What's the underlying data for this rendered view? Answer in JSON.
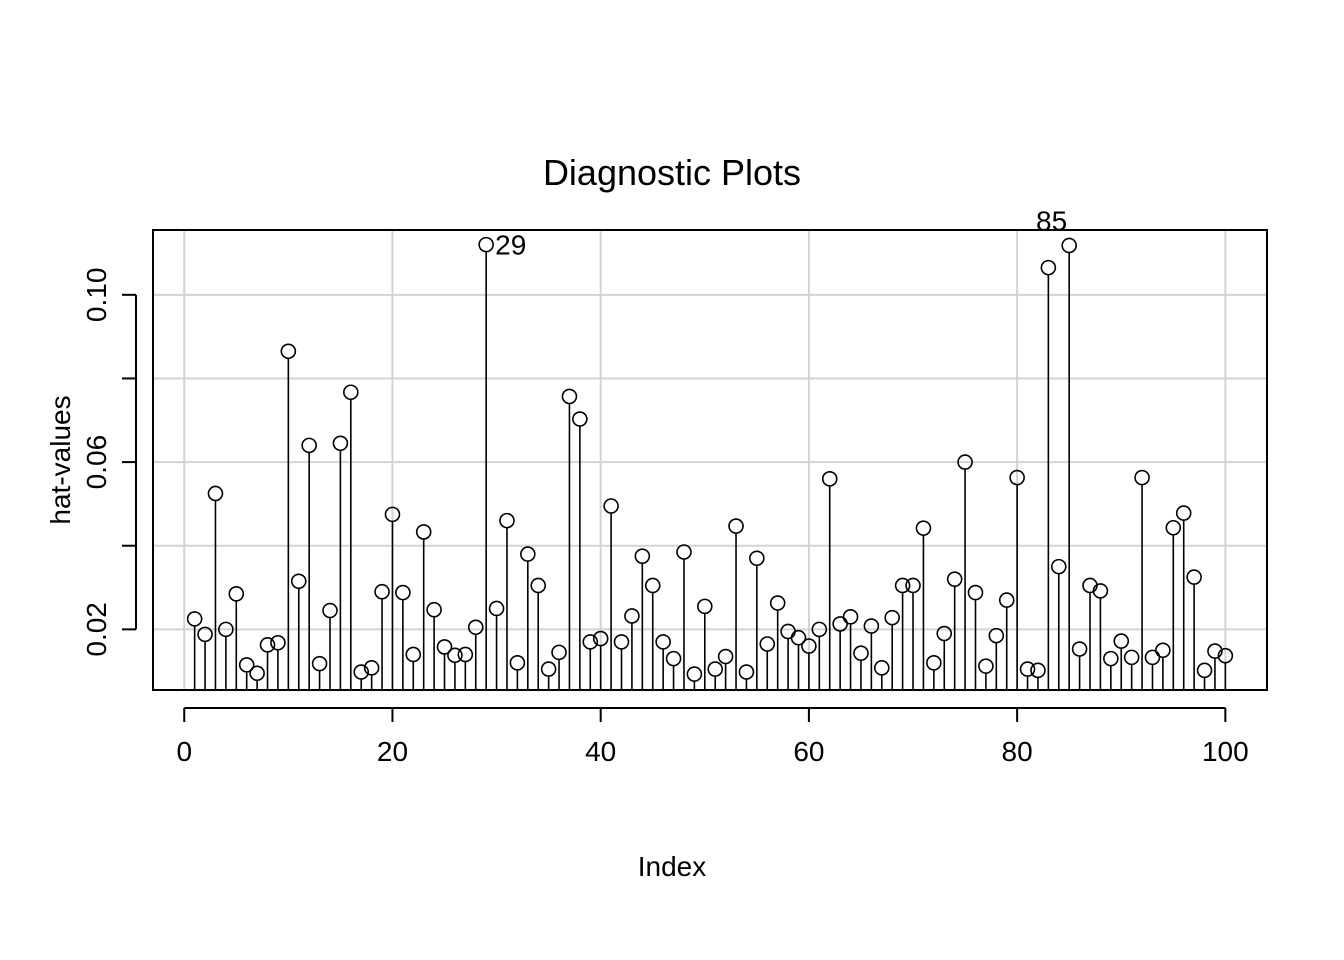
{
  "chart_data": {
    "type": "scatter",
    "style": "hat-values stem plot (vertical lines from baseline with open circles)",
    "title": "Diagnostic Plots",
    "xlabel": "Index",
    "ylabel": "hat-values",
    "xlim": [
      -3,
      104
    ],
    "ylim": [
      0.0055,
      0.1155
    ],
    "baseline": 0.0055,
    "x_ticks": [
      0,
      20,
      40,
      60,
      80,
      100
    ],
    "x_tick_labels": [
      "0",
      "20",
      "40",
      "60",
      "80",
      "100"
    ],
    "y_ticks": [
      0.02,
      0.04,
      0.06,
      0.08,
      0.1
    ],
    "y_tick_labels": [
      "0.02",
      "",
      "0.06",
      "",
      "0.10"
    ],
    "grid": true,
    "grid_color": "#d3d3d3",
    "point_symbol": "open-circle",
    "x": [
      1,
      2,
      3,
      4,
      5,
      6,
      7,
      8,
      9,
      10,
      11,
      12,
      13,
      14,
      15,
      16,
      17,
      18,
      19,
      20,
      21,
      22,
      23,
      24,
      25,
      26,
      27,
      28,
      29,
      30,
      31,
      32,
      33,
      34,
      35,
      36,
      37,
      38,
      39,
      40,
      41,
      42,
      43,
      44,
      45,
      46,
      47,
      48,
      49,
      50,
      51,
      52,
      53,
      54,
      55,
      56,
      57,
      58,
      59,
      60,
      61,
      62,
      63,
      64,
      65,
      66,
      67,
      68,
      69,
      70,
      71,
      72,
      73,
      74,
      75,
      76,
      77,
      78,
      79,
      80,
      81,
      82,
      83,
      84,
      85,
      86,
      87,
      88,
      89,
      90,
      91,
      92,
      93,
      94,
      95,
      96,
      97,
      98,
      99,
      100
    ],
    "y": [
      0.0225,
      0.0188,
      0.0525,
      0.02,
      0.0285,
      0.0115,
      0.0095,
      0.0163,
      0.0168,
      0.0865,
      0.0315,
      0.064,
      0.0118,
      0.0245,
      0.0645,
      0.0767,
      0.0098,
      0.0108,
      0.029,
      0.0475,
      0.0288,
      0.014,
      0.0433,
      0.0247,
      0.0158,
      0.0138,
      0.014,
      0.0205,
      0.112,
      0.025,
      0.046,
      0.012,
      0.038,
      0.0305,
      0.0105,
      0.0145,
      0.0757,
      0.0703,
      0.017,
      0.0178,
      0.0495,
      0.017,
      0.0232,
      0.0375,
      0.0305,
      0.017,
      0.013,
      0.0385,
      0.0093,
      0.0255,
      0.0105,
      0.0135,
      0.0447,
      0.0098,
      0.037,
      0.0165,
      0.0263,
      0.0195,
      0.018,
      0.016,
      0.02,
      0.056,
      0.0213,
      0.023,
      0.0143,
      0.0208,
      0.0108,
      0.0228,
      0.0305,
      0.0305,
      0.0442,
      0.012,
      0.019,
      0.032,
      0.06,
      0.0288,
      0.0112,
      0.0185,
      0.027,
      0.0563,
      0.0105,
      0.0102,
      0.1065,
      0.035,
      0.1118,
      0.0153,
      0.0305,
      0.0292,
      0.013,
      0.0172,
      0.0133,
      0.0563,
      0.0133,
      0.015,
      0.0443,
      0.0478,
      0.0325,
      0.0102,
      0.0148,
      0.0137
    ],
    "annotations": [
      {
        "index": 29,
        "label": "29",
        "side": "right"
      },
      {
        "index": 85,
        "label": "85",
        "side": "left"
      }
    ]
  }
}
